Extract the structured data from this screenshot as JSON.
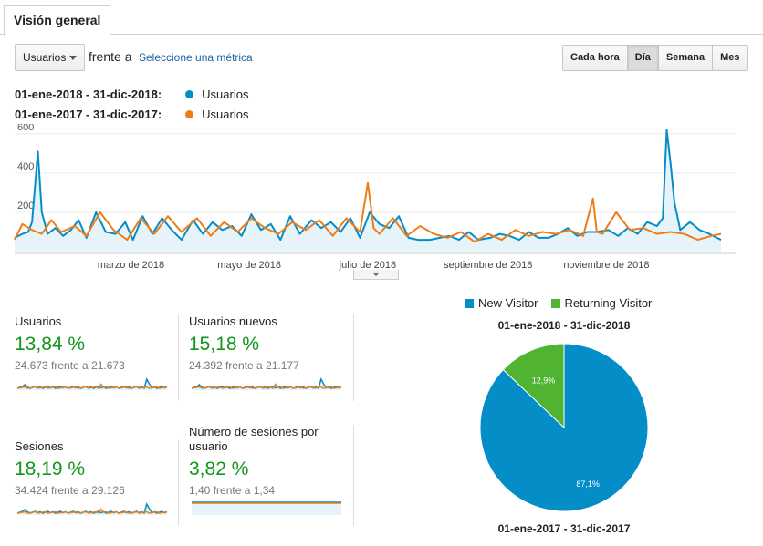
{
  "tabs": [
    {
      "label": "Visión general"
    }
  ],
  "toolbar": {
    "metric_select": "Usuarios",
    "vs_text": "frente a",
    "select_metric_link": "Seleccione una métrica",
    "granularity": [
      {
        "label": "Cada hora",
        "active": false
      },
      {
        "label": "Día",
        "active": true
      },
      {
        "label": "Semana",
        "active": false
      },
      {
        "label": "Mes",
        "active": false
      }
    ]
  },
  "legend": [
    {
      "range": "01-ene-2018 - 31-dic-2018:",
      "series": "Usuarios",
      "color": "#058dc7"
    },
    {
      "range": "01-ene-2017 - 31-dic-2017:",
      "series": "Usuarios",
      "color": "#ed7e17"
    }
  ],
  "chart_data": {
    "type": "line",
    "ylim": [
      0,
      650
    ],
    "yticks": [
      "600",
      "400",
      "200"
    ],
    "xticks": [
      "marzo de 2018",
      "mayo de 2018",
      "julio de 2018",
      "septiembre de 2018",
      "noviembre de 2018"
    ],
    "x_range": [
      "2018-01-01",
      "2018-12-31"
    ],
    "series": [
      {
        "name": "01-ene-2018 - 31-dic-2018",
        "color": "#058dc7",
        "area": true,
        "dates": [
          "2018-01-01",
          "2018-01-05",
          "2018-01-08",
          "2018-01-10",
          "2018-01-13",
          "2018-01-15",
          "2018-01-18",
          "2018-01-22",
          "2018-01-26",
          "2018-01-30",
          "2018-02-03",
          "2018-02-07",
          "2018-02-12",
          "2018-02-17",
          "2018-02-22",
          "2018-02-27",
          "2018-03-03",
          "2018-03-08",
          "2018-03-13",
          "2018-03-18",
          "2018-03-23",
          "2018-03-28",
          "2018-04-03",
          "2018-04-08",
          "2018-04-13",
          "2018-04-18",
          "2018-04-23",
          "2018-04-28",
          "2018-05-03",
          "2018-05-08",
          "2018-05-13",
          "2018-05-18",
          "2018-05-23",
          "2018-05-28",
          "2018-06-03",
          "2018-06-08",
          "2018-06-13",
          "2018-06-18",
          "2018-06-23",
          "2018-06-28",
          "2018-07-03",
          "2018-07-08",
          "2018-07-13",
          "2018-07-18",
          "2018-07-23",
          "2018-07-28",
          "2018-08-03",
          "2018-08-08",
          "2018-08-13",
          "2018-08-18",
          "2018-08-23",
          "2018-08-28",
          "2018-09-03",
          "2018-09-08",
          "2018-09-13",
          "2018-09-18",
          "2018-09-23",
          "2018-09-28",
          "2018-10-03",
          "2018-10-08",
          "2018-10-13",
          "2018-10-18",
          "2018-10-23",
          "2018-10-28",
          "2018-11-03",
          "2018-11-08",
          "2018-11-13",
          "2018-11-18",
          "2018-11-23",
          "2018-11-28",
          "2018-12-01",
          "2018-12-03",
          "2018-12-05",
          "2018-12-07",
          "2018-12-10",
          "2018-12-15",
          "2018-12-20",
          "2018-12-25",
          "2018-12-31"
        ],
        "values": [
          70,
          90,
          100,
          150,
          510,
          200,
          90,
          120,
          80,
          110,
          160,
          70,
          200,
          100,
          90,
          150,
          60,
          180,
          90,
          170,
          110,
          60,
          160,
          90,
          150,
          110,
          130,
          80,
          190,
          110,
          140,
          60,
          180,
          90,
          160,
          120,
          150,
          100,
          170,
          70,
          200,
          140,
          120,
          180,
          70,
          60,
          60,
          70,
          80,
          60,
          100,
          60,
          70,
          90,
          80,
          60,
          100,
          70,
          70,
          90,
          120,
          80,
          100,
          100,
          110,
          80,
          120,
          90,
          150,
          130,
          170,
          620,
          450,
          250,
          110,
          150,
          110,
          90,
          60
        ]
      },
      {
        "name": "01-ene-2017 - 31-dic-2017",
        "color": "#ed7e17",
        "area": false,
        "dates": [
          "2018-01-01",
          "2018-01-05",
          "2018-01-10",
          "2018-01-15",
          "2018-01-20",
          "2018-01-25",
          "2018-02-01",
          "2018-02-07",
          "2018-02-14",
          "2018-02-21",
          "2018-02-28",
          "2018-03-07",
          "2018-03-14",
          "2018-03-21",
          "2018-03-28",
          "2018-04-05",
          "2018-04-12",
          "2018-04-19",
          "2018-04-26",
          "2018-05-03",
          "2018-05-10",
          "2018-05-17",
          "2018-05-24",
          "2018-05-31",
          "2018-06-07",
          "2018-06-14",
          "2018-06-21",
          "2018-06-28",
          "2018-07-02",
          "2018-07-05",
          "2018-07-08",
          "2018-07-15",
          "2018-07-22",
          "2018-07-29",
          "2018-08-05",
          "2018-08-12",
          "2018-08-19",
          "2018-08-26",
          "2018-09-02",
          "2018-09-09",
          "2018-09-16",
          "2018-09-23",
          "2018-09-30",
          "2018-10-07",
          "2018-10-14",
          "2018-10-21",
          "2018-10-26",
          "2018-10-28",
          "2018-10-31",
          "2018-11-07",
          "2018-11-14",
          "2018-11-21",
          "2018-11-28",
          "2018-12-05",
          "2018-12-12",
          "2018-12-19",
          "2018-12-26",
          "2018-12-31"
        ],
        "values": [
          60,
          140,
          110,
          90,
          160,
          100,
          130,
          80,
          200,
          110,
          60,
          170,
          90,
          180,
          100,
          170,
          80,
          150,
          100,
          170,
          120,
          90,
          150,
          110,
          160,
          80,
          170,
          100,
          350,
          120,
          90,
          170,
          80,
          130,
          90,
          70,
          100,
          50,
          90,
          60,
          110,
          80,
          100,
          90,
          110,
          80,
          270,
          100,
          90,
          200,
          110,
          120,
          90,
          100,
          90,
          60,
          80,
          90
        ]
      }
    ]
  },
  "tiles": [
    {
      "label": "Usuarios",
      "value": "13,84 %",
      "compare": "24.673 frente a 21.673"
    },
    {
      "label": "Usuarios nuevos",
      "value": "15,18 %",
      "compare": "24.392 frente a 21.177"
    },
    {
      "label": "Sesiones",
      "value": "18,19 %",
      "compare": "34.424 frente a 29.126"
    },
    {
      "label": "Número de sesiones por usuario",
      "value": "3,82 %",
      "compare": "1,40 frente a 1,34"
    }
  ],
  "pie": {
    "legend": [
      {
        "label": "New Visitor",
        "color": "#058dc7"
      },
      {
        "label": "Returning Visitor",
        "color": "#50b432"
      }
    ],
    "title_top": "01-ene-2018 - 31-dic-2018",
    "title_bottom": "01-ene-2017 - 31-dic-2017",
    "chart_data": {
      "type": "pie",
      "slices": [
        {
          "label": "New Visitor",
          "value": 87.1,
          "text": "87,1%",
          "color": "#058dc7"
        },
        {
          "label": "Returning Visitor",
          "value": 12.9,
          "text": "12,9%",
          "color": "#50b432"
        }
      ]
    }
  }
}
